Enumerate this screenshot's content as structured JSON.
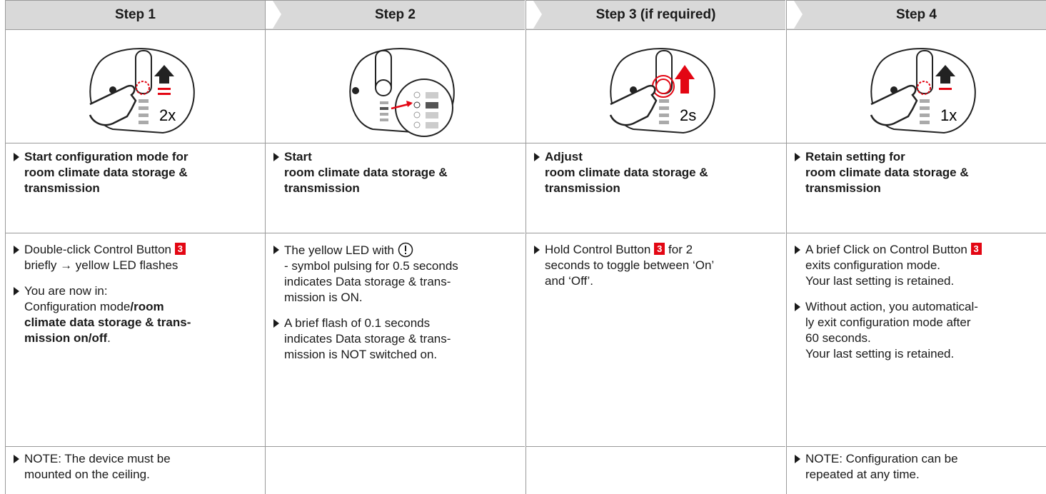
{
  "columns": [
    {
      "step": "Step 1",
      "icon_label": "2x",
      "title": "Start configuration mode for\nroom climate data storage &\ntransmission",
      "description": [
        [
          "Double-click Control Button ",
          "3",
          "\nbriefly → yellow LED flashes"
        ],
        [
          "You are now in:\nConfiguration mode",
          "/room\nclimate data storage & trans-\nmission on/off",
          "."
        ]
      ],
      "note": "NOTE: The device must be\nmounted on the ceiling."
    },
    {
      "step": "Step 2",
      "title": "Start\nroom climate data storage &\ntransmission",
      "description": [
        [
          "The yellow LED with ",
          "\n- symbol pulsing for 0.5 seconds\nindicates Data storage & trans-\nmission is ON."
        ],
        [
          "A brief flash of 0.1 seconds\nindicates Data storage & trans-\nmission is NOT switched on."
        ]
      ]
    },
    {
      "step": "Step 3 (if required)",
      "icon_label": "2s",
      "title": "Adjust\nroom climate data storage &\ntransmission",
      "description": [
        [
          "Hold Control Button ",
          "3",
          " for 2\nseconds to toggle between ‘On’\nand ‘Off’."
        ]
      ]
    },
    {
      "step": "Step 4",
      "icon_label": "1x",
      "title": "Retain setting for\nroom climate data storage &\ntransmission",
      "description": [
        [
          "A brief Click on Control Button ",
          "3",
          "\nexits configuration mode.\nYour last setting is retained."
        ],
        [
          "Without action, you automatical-\nly exit configuration mode after\n60 seconds.\nYour last setting is retained."
        ]
      ],
      "note": "NOTE: Configuration can be\nrepeated at any time."
    }
  ]
}
